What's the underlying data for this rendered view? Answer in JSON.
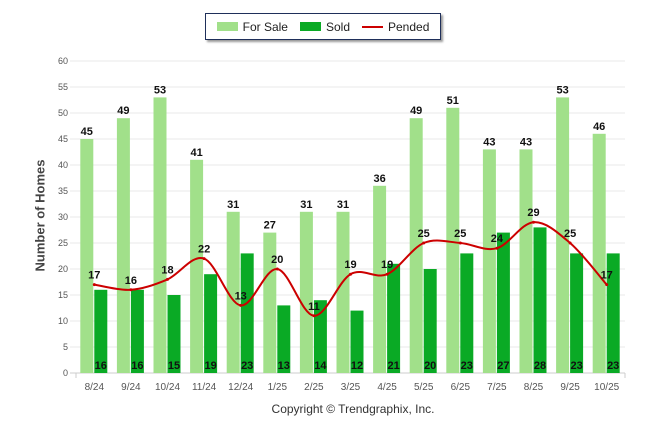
{
  "chart_data": {
    "type": "bar",
    "title": "",
    "xlabel": "",
    "ylabel": "Number of Homes",
    "ylim": [
      0,
      60
    ],
    "yticks": [
      0,
      5,
      10,
      15,
      20,
      25,
      30,
      35,
      40,
      45,
      50,
      55,
      60
    ],
    "grid": true,
    "legend_position": "top-center",
    "categories": [
      "8/24",
      "9/24",
      "10/24",
      "11/24",
      "12/24",
      "1/25",
      "2/25",
      "3/25",
      "4/25",
      "5/25",
      "6/25",
      "7/25",
      "8/25",
      "9/25",
      "10/25"
    ],
    "series": [
      {
        "name": "For Sale",
        "kind": "bar",
        "color": "#a1e08a",
        "values": [
          45,
          49,
          53,
          41,
          31,
          27,
          31,
          31,
          36,
          49,
          51,
          43,
          43,
          53,
          46
        ]
      },
      {
        "name": "Sold",
        "kind": "bar",
        "color": "#0aaa25",
        "values": [
          16,
          16,
          15,
          19,
          23,
          13,
          14,
          12,
          21,
          20,
          23,
          27,
          28,
          23,
          23
        ]
      },
      {
        "name": "Pended",
        "kind": "line",
        "color": "#cc0000",
        "values": [
          17,
          16,
          18,
          22,
          13,
          20,
          11,
          19,
          19,
          25,
          25,
          24,
          29,
          25,
          17
        ]
      }
    ]
  },
  "footer": {
    "copyright": "Copyright © Trendgraphix, Inc."
  }
}
